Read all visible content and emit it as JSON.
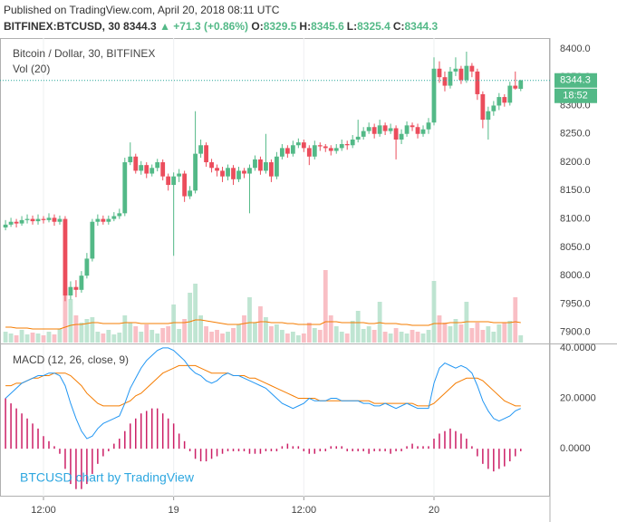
{
  "header": {
    "published": "Published on TradingView.com, April 20, 2018 08:11 UTC",
    "symbol": "BITFINEX:BTCUSD, 30",
    "price": "8344.3",
    "change": "▲ +71.3 (+0.86%)",
    "ohlc": [
      {
        "label": "O:",
        "value": "8329.5"
      },
      {
        "label": "H:",
        "value": "8345.6"
      },
      {
        "label": "L:",
        "value": "8325.4"
      },
      {
        "label": "C:",
        "value": "8344.3"
      }
    ],
    "watermark": "BTCUSD chart by TradingView"
  },
  "chart_data": {
    "type": "candlestick",
    "title": "Bitcoin / Dollar, 30, BITFINEX",
    "categories": [
      null,
      null,
      null,
      null,
      null,
      null,
      null,
      "12:00",
      null,
      null,
      null,
      null,
      null,
      null,
      null,
      null,
      null,
      null,
      null,
      null,
      null,
      null,
      null,
      null,
      null,
      null,
      null,
      null,
      null,
      null,
      null,
      "19",
      null,
      null,
      null,
      null,
      null,
      null,
      null,
      null,
      null,
      null,
      null,
      null,
      null,
      null,
      null,
      null,
      null,
      null,
      null,
      null,
      null,
      null,
      null,
      "12:00",
      null,
      null,
      null,
      null,
      null,
      null,
      null,
      null,
      null,
      null,
      null,
      null,
      null,
      null,
      null,
      null,
      null,
      null,
      null,
      null,
      null,
      null,
      null,
      "20",
      null,
      null,
      null,
      null,
      null,
      null,
      null,
      null,
      null,
      null,
      null,
      null,
      null,
      null,
      null,
      null
    ],
    "open": [
      8085,
      8090,
      8095,
      8092,
      8098,
      8100,
      8096,
      8100,
      8098,
      8102,
      8095,
      8100,
      7965,
      7980,
      7975,
      8000,
      8030,
      8095,
      8100,
      8095,
      8100,
      8105,
      8110,
      8200,
      8210,
      8185,
      8195,
      8180,
      8190,
      8200,
      8175,
      8160,
      8175,
      8180,
      8140,
      8150,
      8215,
      8230,
      8200,
      8190,
      8185,
      8175,
      8190,
      8170,
      8185,
      8180,
      8190,
      8205,
      8185,
      8200,
      8175,
      8210,
      8225,
      8215,
      8230,
      8235,
      8225,
      8210,
      8230,
      8228,
      8225,
      8220,
      8225,
      8232,
      8230,
      8240,
      8245,
      8255,
      8262,
      8250,
      8265,
      8255,
      8260,
      8240,
      8250,
      8265,
      8262,
      8250,
      8258,
      8270,
      8365,
      8350,
      8335,
      8360,
      8365,
      8345,
      8370,
      8360,
      8320,
      8275,
      8290,
      8300,
      8315,
      8305,
      8335,
      8329.5
    ],
    "high": [
      8098,
      8102,
      8100,
      8105,
      8108,
      8106,
      8108,
      8105,
      8110,
      8108,
      8106,
      8105,
      7990,
      7992,
      8008,
      8040,
      8100,
      8108,
      8106,
      8106,
      8112,
      8118,
      8208,
      8235,
      8215,
      8202,
      8200,
      8196,
      8206,
      8205,
      8180,
      8182,
      8188,
      8185,
      8158,
      8290,
      8240,
      8235,
      8206,
      8196,
      8192,
      8196,
      8195,
      8192,
      8190,
      8196,
      8212,
      8210,
      8250,
      8205,
      8218,
      8232,
      8230,
      8238,
      8242,
      8240,
      8230,
      8238,
      8235,
      8232,
      8230,
      8232,
      8240,
      8238,
      8248,
      8275,
      8262,
      8270,
      8268,
      8275,
      8270,
      8268,
      8265,
      8258,
      8272,
      8270,
      8268,
      8265,
      8278,
      8385,
      8378,
      8360,
      8368,
      8385,
      8370,
      8395,
      8375,
      8365,
      8325,
      8298,
      8308,
      8322,
      8320,
      8342,
      8360,
      8345.6
    ],
    "low": [
      8080,
      8086,
      8085,
      8088,
      8092,
      8090,
      8090,
      8092,
      8094,
      8088,
      8090,
      7955,
      7958,
      7962,
      7970,
      7995,
      8025,
      8088,
      8090,
      8090,
      8096,
      8100,
      8105,
      8195,
      8180,
      8178,
      8172,
      8175,
      8184,
      8168,
      8150,
      8035,
      8165,
      8130,
      8135,
      8145,
      8208,
      8192,
      8182,
      8175,
      8165,
      8168,
      8160,
      8165,
      8172,
      8110,
      8185,
      8178,
      8180,
      8165,
      8170,
      8205,
      8208,
      8210,
      8225,
      8218,
      8195,
      8205,
      8220,
      8218,
      8212,
      8215,
      8220,
      8222,
      8225,
      8235,
      8240,
      8250,
      8242,
      8245,
      8248,
      8250,
      8205,
      8232,
      8245,
      8255,
      8242,
      8245,
      8250,
      8265,
      8340,
      8325,
      8330,
      8352,
      8338,
      8340,
      8350,
      8310,
      8260,
      8240,
      8282,
      8292,
      8298,
      8300,
      8328,
      8325.4
    ],
    "close": [
      8090,
      8095,
      8092,
      8098,
      8100,
      8096,
      8100,
      8098,
      8102,
      8095,
      8100,
      7965,
      7980,
      7975,
      8000,
      8030,
      8095,
      8100,
      8095,
      8100,
      8105,
      8110,
      8200,
      8210,
      8185,
      8195,
      8180,
      8190,
      8200,
      8175,
      8160,
      8175,
      8180,
      8140,
      8150,
      8215,
      8230,
      8200,
      8190,
      8185,
      8175,
      8190,
      8170,
      8185,
      8180,
      8190,
      8205,
      8185,
      8200,
      8175,
      8210,
      8225,
      8215,
      8230,
      8235,
      8225,
      8210,
      8230,
      8228,
      8225,
      8220,
      8225,
      8232,
      8230,
      8240,
      8245,
      8255,
      8262,
      8250,
      8265,
      8255,
      8260,
      8240,
      8250,
      8265,
      8262,
      8250,
      8258,
      8270,
      8365,
      8350,
      8335,
      8360,
      8365,
      8345,
      8370,
      8360,
      8320,
      8275,
      8290,
      8300,
      8315,
      8305,
      8335,
      8330,
      8344.3
    ],
    "up_color": "#53b987",
    "down_color": "#eb4d5c",
    "ylim": [
      7882,
      8419
    ],
    "yticks": [
      {
        "value": 7900,
        "label": "7900.0"
      },
      {
        "value": 7950,
        "label": "7950.0"
      },
      {
        "value": 8000,
        "label": "8000.0"
      },
      {
        "value": 8050,
        "label": "8050.0"
      },
      {
        "value": 8100,
        "label": "8100.0"
      },
      {
        "value": 8150,
        "label": "8150.0"
      },
      {
        "value": 8200,
        "label": "8200.0"
      },
      {
        "value": 8250,
        "label": "8250.0"
      },
      {
        "value": 8300,
        "label": "8300.0"
      },
      {
        "value": 8350,
        "label": "8350.0"
      },
      {
        "value": 8400,
        "label": "8400.0"
      }
    ],
    "grid": true,
    "last_price_time": "18:52",
    "volume": {
      "label": "Vol (20)",
      "values": [
        12,
        10,
        8,
        14,
        9,
        11,
        10,
        8,
        12,
        9,
        15,
        60,
        48,
        30,
        22,
        26,
        28,
        12,
        10,
        14,
        9,
        11,
        30,
        22,
        18,
        12,
        20,
        14,
        10,
        16,
        18,
        42,
        15,
        26,
        55,
        65,
        30,
        18,
        12,
        14,
        10,
        12,
        16,
        20,
        30,
        50,
        22,
        40,
        28,
        18,
        20,
        14,
        10,
        12,
        8,
        10,
        22,
        16,
        14,
        80,
        30,
        18,
        12,
        10,
        24,
        35,
        15,
        18,
        14,
        45,
        12,
        10,
        16,
        12,
        10,
        14,
        12,
        10,
        14,
        68,
        30,
        22,
        18,
        26,
        20,
        45,
        16,
        22,
        14,
        18,
        12,
        20,
        22,
        24,
        50,
        8
      ],
      "ma": [
        17,
        17,
        16,
        16,
        16,
        15,
        15,
        15,
        15,
        15,
        15,
        17,
        19,
        20,
        20,
        21,
        22,
        22,
        21,
        21,
        21,
        21,
        22,
        22,
        22,
        21,
        21,
        21,
        21,
        21,
        21,
        22,
        22,
        22,
        23,
        25,
        25,
        24,
        23,
        22,
        21,
        20,
        20,
        20,
        21,
        22,
        22,
        23,
        23,
        22,
        22,
        22,
        21,
        21,
        20,
        20,
        20,
        20,
        20,
        23,
        23,
        23,
        22,
        22,
        22,
        22,
        22,
        21,
        21,
        22,
        21,
        21,
        21,
        20,
        20,
        19,
        19,
        19,
        19,
        21,
        21,
        21,
        22,
        22,
        22,
        23,
        23,
        23,
        23,
        23,
        22,
        22,
        22,
        22,
        23,
        22
      ],
      "ma_color": "#f57c00",
      "up_color": "#a9dcc3",
      "down_color": "#f7a9b1"
    },
    "macd": {
      "label": "MACD (12, 26, close, 9)",
      "ylim": [
        -19,
        41.4
      ],
      "yticks": [
        {
          "value": 0,
          "label": "0.0000"
        },
        {
          "value": 20,
          "label": "20.0000"
        },
        {
          "value": 40,
          "label": "40.0000"
        }
      ],
      "macd_line": {
        "color": "#2196f3",
        "values": [
          20,
          22,
          24,
          26,
          27,
          28,
          29,
          29,
          30,
          30,
          29,
          25,
          18,
          12,
          7,
          4,
          5,
          8,
          10,
          11,
          12,
          13,
          18,
          24,
          28,
          32,
          35,
          37,
          39,
          40,
          40,
          39,
          37,
          35,
          32,
          30,
          29,
          27,
          26,
          27,
          29,
          30,
          29,
          29,
          28,
          27,
          26,
          25,
          24,
          22,
          20,
          18,
          17,
          16,
          17,
          18,
          20,
          19,
          19,
          19,
          20,
          20,
          19,
          19,
          19,
          19,
          18,
          18,
          17,
          17,
          18,
          17,
          16,
          17,
          18,
          17,
          16,
          16,
          16,
          26,
          32,
          34,
          33,
          32,
          33,
          32,
          30,
          25,
          19,
          15,
          12,
          11,
          12,
          13,
          15,
          16
        ]
      },
      "signal": {
        "color": "#f57c00",
        "values": [
          25,
          25,
          26,
          26,
          27,
          28,
          28,
          29,
          29,
          30,
          30,
          30,
          29,
          27,
          25,
          22,
          20,
          18,
          17,
          17,
          17,
          17,
          18,
          19,
          21,
          22,
          24,
          26,
          28,
          30,
          31,
          32,
          33,
          33,
          33,
          33,
          32,
          31,
          30,
          30,
          30,
          30,
          29,
          29,
          29,
          28,
          28,
          27,
          26,
          25,
          24,
          23,
          22,
          21,
          20,
          20,
          20,
          20,
          19,
          19,
          19,
          19,
          19,
          19,
          19,
          19,
          19,
          19,
          18,
          18,
          18,
          18,
          18,
          18,
          18,
          18,
          17,
          17,
          17,
          18,
          20,
          22,
          24,
          26,
          27,
          28,
          28,
          28,
          27,
          25,
          23,
          21,
          19,
          18,
          17,
          17
        ]
      },
      "histogram": {
        "color": "#cc1f66",
        "values": [
          20,
          18,
          16,
          14,
          12,
          10,
          8,
          5,
          3,
          1,
          -2,
          -8,
          -14,
          -16,
          -16,
          -14,
          -10,
          -6,
          -3,
          -1,
          2,
          4,
          7,
          10,
          12,
          14,
          15,
          16,
          16,
          14,
          12,
          10,
          6,
          3,
          -1,
          -4,
          -5,
          -5,
          -4,
          -3,
          -2,
          -1,
          -1,
          -1,
          -1,
          -2,
          -2,
          -2,
          -1,
          -1,
          -1,
          1,
          2,
          1,
          1,
          -1,
          -2,
          -2,
          -1,
          -1,
          1,
          1,
          1,
          -1,
          -1,
          -1,
          -1,
          -2,
          -1,
          -1,
          -1,
          -2,
          -1,
          -1,
          1,
          2,
          1,
          1,
          1,
          4,
          6,
          7,
          8,
          7,
          6,
          4,
          1,
          -3,
          -6,
          -8,
          -9,
          -8,
          -7,
          -5,
          -3,
          -1
        ]
      }
    }
  }
}
